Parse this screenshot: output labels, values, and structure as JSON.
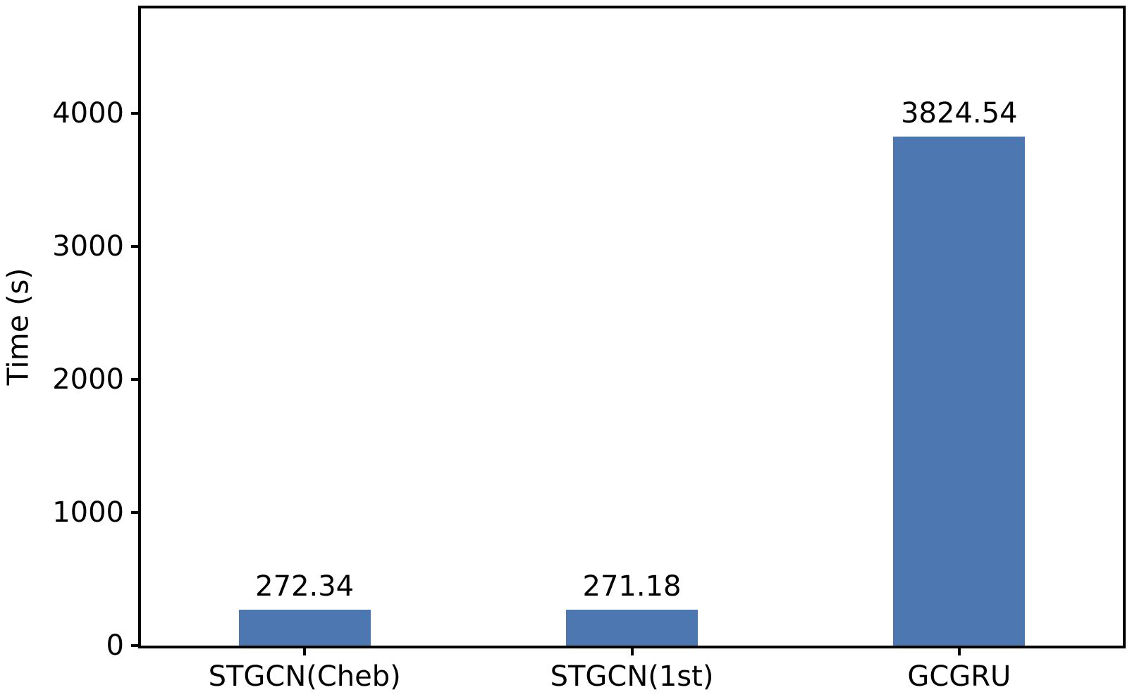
{
  "chart_data": {
    "type": "bar",
    "categories": [
      "STGCN(Cheb)",
      "STGCN(1st)",
      "GCGRU"
    ],
    "values": [
      272.34,
      271.18,
      3824.54
    ],
    "bar_labels": [
      "272.34",
      "271.18",
      "3824.54"
    ],
    "title": "",
    "xlabel": "",
    "ylabel": "Time (s)",
    "yticks": [
      0,
      1000,
      2000,
      3000,
      4000
    ],
    "ytick_labels": [
      "0",
      "1000",
      "2000",
      "3000",
      "4000"
    ],
    "ylim": [
      0,
      4788
    ],
    "grid": false,
    "legend": null,
    "frame": true,
    "bar_color": "#4c77b0",
    "axis_color": "#000000",
    "text_color": "#000000",
    "background_color": "#ffffff"
  }
}
